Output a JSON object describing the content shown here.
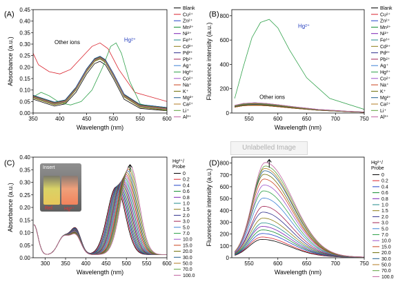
{
  "series_colors": [
    "#000000",
    "#d9212b",
    "#1d3fc7",
    "#0f8a2c",
    "#7a1fb2",
    "#1c8a8a",
    "#8a7a10",
    "#2d2d8a",
    "#a02050",
    "#3a7fd5",
    "#2fa14a",
    "#9b4fc9",
    "#c9401a",
    "#6b6b00",
    "#1a5a8a",
    "#b07a20",
    "#5a9e3a",
    "#c0609e",
    "#d8d440"
  ],
  "panels": [
    {
      "letter": "(A)",
      "xlabel": "Wavelength (nm)",
      "ylabel": "Absorbance (a.u.)",
      "xlim": [
        350,
        600
      ],
      "ylim": [
        0,
        0.45
      ],
      "xticks": [
        350,
        400,
        450,
        500,
        550,
        600
      ],
      "yticks": [
        0.0,
        0.05,
        0.1,
        0.15,
        0.2,
        0.25,
        0.3,
        0.35,
        0.4,
        0.45
      ],
      "ytick_labels": [
        "0.00",
        "0.05",
        "0.10",
        "0.15",
        "0.20",
        "0.25",
        "0.30",
        "0.35",
        "0.40",
        "0.45"
      ],
      "legend_head": "",
      "legend": [
        "Blank",
        "Cu²⁺",
        "Zn²⁺",
        "Mn²⁺",
        "Ni²⁺",
        "Fe³⁺",
        "Cd²⁺",
        "Pd²⁺",
        "Pb²⁺",
        "Ag⁺",
        "Hg²⁺",
        "Co²⁺",
        "Na⁺",
        "K⁺",
        "Mg²⁺",
        "Ca²⁺",
        "Li⁺",
        "Al³⁺"
      ],
      "annotations": [
        {
          "text": "Other ions",
          "x": 390,
          "y": 0.3,
          "style": "black"
        },
        {
          "text": "Hg²⁺",
          "x": 520,
          "y": 0.31,
          "style": "blue"
        }
      ]
    },
    {
      "letter": "(B)",
      "xlabel": "Wavelength (nm)",
      "ylabel": "Fluorescence intensity (a.u.)",
      "xlim": [
        520,
        750
      ],
      "ylim": [
        0,
        850
      ],
      "xticks": [
        550,
        600,
        650,
        700,
        750
      ],
      "yticks": [
        0,
        200,
        400,
        600,
        800
      ],
      "ytick_labels": [
        "0",
        "200",
        "400",
        "600",
        "800"
      ],
      "legend_head": "",
      "legend": [
        "Blank",
        "Cu²⁺",
        "Zn²⁺",
        "Mn²⁺",
        "Ni²⁺",
        "Fe³⁺",
        "Cd²⁺",
        "Pd²⁺",
        "Pb²⁺",
        "Ag⁺",
        "Hg²⁺",
        "Co²⁺",
        "Na⁺",
        "K⁺",
        "Mg²⁺",
        "Ca²⁺",
        "Li⁺",
        "Al³⁺"
      ],
      "annotations": [
        {
          "text": "Hg²⁺",
          "x": 635,
          "y": 700,
          "style": "blue"
        },
        {
          "text": "Other ions",
          "x": 568,
          "y": 115,
          "style": "black"
        }
      ]
    },
    {
      "letter": "(C)",
      "xlabel": "Wavelength (nm)",
      "ylabel": "Absorbance (a.u.)",
      "xlim": [
        270,
        600
      ],
      "ylim": [
        0,
        0.4
      ],
      "xticks": [
        300,
        350,
        400,
        450,
        500,
        550,
        600
      ],
      "yticks": [
        0.0,
        0.05,
        0.1,
        0.15,
        0.2,
        0.25,
        0.3,
        0.35,
        0.4
      ],
      "ytick_labels": [
        "0.00",
        "0.05",
        "0.10",
        "0.15",
        "0.20",
        "0.25",
        "0.30",
        "0.35",
        "0.40"
      ],
      "legend_head": [
        "Hg²⁺/",
        "Probe"
      ],
      "legend": [
        "0",
        "0.2",
        "0.4",
        "0.6",
        "0.8",
        "1.0",
        "1.5",
        "2.0",
        "3.0",
        "5.0",
        "7.0",
        "10.0",
        "15.0",
        "20.0",
        "30.0",
        "50.0",
        "70.0",
        "100.0"
      ],
      "annotations": []
    },
    {
      "letter": "(D)",
      "xlabel": "Wavelength (nm)",
      "ylabel": "Fluorescence intensity (a.u.)",
      "xlim": [
        520,
        750
      ],
      "ylim": [
        0,
        850
      ],
      "xticks": [
        550,
        600,
        650,
        700,
        750
      ],
      "yticks": [
        0,
        100,
        200,
        300,
        400,
        500,
        600,
        700,
        800
      ],
      "ytick_labels": [
        "0",
        "100",
        "200",
        "300",
        "400",
        "500",
        "600",
        "700",
        "800"
      ],
      "legend_head": [
        "Hg²⁺/",
        "Probe"
      ],
      "legend": [
        "0",
        "0.2",
        "0.4",
        "0.6",
        "0.8",
        "1.0",
        "1.5",
        "2.0",
        "3.0",
        "5.0",
        "7.0",
        "10.0",
        "15.0",
        "20.0",
        "30.0",
        "50.0",
        "70.0",
        "100.0"
      ],
      "annotations": []
    }
  ],
  "insert": {
    "title": "Insert",
    "ref_label": "Ref.",
    "hg_label": "Hg²⁺"
  },
  "watermark": "Unlabelled Image",
  "chart_data": [
    {
      "type": "line",
      "panel": "A",
      "xlabel": "Wavelength (nm)",
      "ylabel": "Absorbance (a.u.)",
      "xlim": [
        350,
        600
      ],
      "ylim": [
        0,
        0.45
      ],
      "series": [
        {
          "name": "Blank",
          "x": [
            350,
            370,
            390,
            410,
            430,
            450,
            465,
            475,
            485,
            500,
            520,
            550,
            600
          ],
          "values": [
            0.06,
            0.045,
            0.03,
            0.04,
            0.09,
            0.17,
            0.215,
            0.225,
            0.21,
            0.15,
            0.06,
            0.02,
            0.01
          ]
        },
        {
          "name": "Cu²⁺",
          "x": [
            350,
            360,
            380,
            400,
            420,
            440,
            460,
            475,
            490,
            510,
            540,
            600
          ],
          "values": [
            0.26,
            0.21,
            0.18,
            0.17,
            0.19,
            0.24,
            0.29,
            0.305,
            0.28,
            0.19,
            0.09,
            0.05
          ]
        },
        {
          "name": "Hg²⁺",
          "x": [
            350,
            365,
            380,
            400,
            420,
            440,
            460,
            480,
            495,
            505,
            515,
            530,
            550,
            600
          ],
          "values": [
            0.07,
            0.09,
            0.075,
            0.045,
            0.035,
            0.05,
            0.1,
            0.2,
            0.29,
            0.305,
            0.26,
            0.14,
            0.04,
            0.01
          ]
        },
        {
          "name": "Other ions",
          "x": [
            350,
            370,
            390,
            410,
            430,
            450,
            465,
            475,
            485,
            500,
            520,
            550,
            600
          ],
          "values": [
            0.065,
            0.05,
            0.035,
            0.045,
            0.1,
            0.18,
            0.225,
            0.235,
            0.22,
            0.16,
            0.07,
            0.025,
            0.012
          ]
        }
      ]
    },
    {
      "type": "line",
      "panel": "B",
      "xlabel": "Wavelength (nm)",
      "ylabel": "Fluorescence intensity (a.u.)",
      "xlim": [
        520,
        750
      ],
      "ylim": [
        0,
        850
      ],
      "series": [
        {
          "name": "Hg²⁺",
          "x": [
            525,
            540,
            555,
            570,
            585,
            600,
            620,
            650,
            690,
            750
          ],
          "values": [
            120,
            380,
            620,
            745,
            770,
            700,
            520,
            290,
            120,
            30
          ]
        },
        {
          "name": "Other ions",
          "x": [
            525,
            540,
            560,
            580,
            600,
            630,
            670,
            720,
            750
          ],
          "values": [
            60,
            75,
            80,
            75,
            65,
            48,
            28,
            14,
            8
          ]
        }
      ]
    },
    {
      "type": "line",
      "panel": "C",
      "xlabel": "Wavelength (nm)",
      "ylabel": "Absorbance (a.u.)",
      "xlim": [
        270,
        600
      ],
      "ylim": [
        0,
        0.4
      ],
      "legend_title": "Hg²⁺/ Probe",
      "series": [
        {
          "name": "0",
          "peak_nm": 475,
          "peak_value": 0.27
        },
        {
          "name": "0.2",
          "peak_nm": 477,
          "peak_value": 0.272
        },
        {
          "name": "0.4",
          "peak_nm": 479,
          "peak_value": 0.275
        },
        {
          "name": "0.6",
          "peak_nm": 481,
          "peak_value": 0.278
        },
        {
          "name": "0.8",
          "peak_nm": 483,
          "peak_value": 0.281
        },
        {
          "name": "1.0",
          "peak_nm": 485,
          "peak_value": 0.284
        },
        {
          "name": "1.5",
          "peak_nm": 487,
          "peak_value": 0.288
        },
        {
          "name": "2.0",
          "peak_nm": 489,
          "peak_value": 0.292
        },
        {
          "name": "3.0",
          "peak_nm": 491,
          "peak_value": 0.297
        },
        {
          "name": "5.0",
          "peak_nm": 493,
          "peak_value": 0.302
        },
        {
          "name": "7.0",
          "peak_nm": 495,
          "peak_value": 0.308
        },
        {
          "name": "10.0",
          "peak_nm": 497,
          "peak_value": 0.314
        },
        {
          "name": "15.0",
          "peak_nm": 499,
          "peak_value": 0.32
        },
        {
          "name": "20.0",
          "peak_nm": 501,
          "peak_value": 0.327
        },
        {
          "name": "30.0",
          "peak_nm": 503,
          "peak_value": 0.334
        },
        {
          "name": "50.0",
          "peak_nm": 505,
          "peak_value": 0.341
        },
        {
          "name": "70.0",
          "peak_nm": 507,
          "peak_value": 0.348
        },
        {
          "name": "100.0",
          "peak_nm": 509,
          "peak_value": 0.355
        }
      ]
    },
    {
      "type": "line",
      "panel": "D",
      "xlabel": "Wavelength (nm)",
      "ylabel": "Fluorescence intensity (a.u.)",
      "xlim": [
        520,
        750
      ],
      "ylim": [
        0,
        850
      ],
      "legend_title": "Hg²⁺/ Probe",
      "series": [
        {
          "name": "0",
          "peak_nm": 572,
          "peak_value": 150
        },
        {
          "name": "0.2",
          "peak_nm": 572,
          "peak_value": 170
        },
        {
          "name": "0.4",
          "peak_nm": 573,
          "peak_value": 200
        },
        {
          "name": "0.6",
          "peak_nm": 573,
          "peak_value": 230
        },
        {
          "name": "0.8",
          "peak_nm": 573,
          "peak_value": 260
        },
        {
          "name": "1.0",
          "peak_nm": 574,
          "peak_value": 290
        },
        {
          "name": "1.5",
          "peak_nm": 574,
          "peak_value": 330
        },
        {
          "name": "2.0",
          "peak_nm": 574,
          "peak_value": 380
        },
        {
          "name": "3.0",
          "peak_nm": 575,
          "peak_value": 430
        },
        {
          "name": "5.0",
          "peak_nm": 575,
          "peak_value": 500
        },
        {
          "name": "7.0",
          "peak_nm": 575,
          "peak_value": 560
        },
        {
          "name": "10.0",
          "peak_nm": 576,
          "peak_value": 610
        },
        {
          "name": "15.0",
          "peak_nm": 576,
          "peak_value": 660
        },
        {
          "name": "20.0",
          "peak_nm": 576,
          "peak_value": 700
        },
        {
          "name": "30.0",
          "peak_nm": 577,
          "peak_value": 730
        },
        {
          "name": "50.0",
          "peak_nm": 577,
          "peak_value": 750
        },
        {
          "name": "70.0",
          "peak_nm": 578,
          "peak_value": 770
        },
        {
          "name": "100.0",
          "peak_nm": 578,
          "peak_value": 800
        }
      ]
    }
  ]
}
